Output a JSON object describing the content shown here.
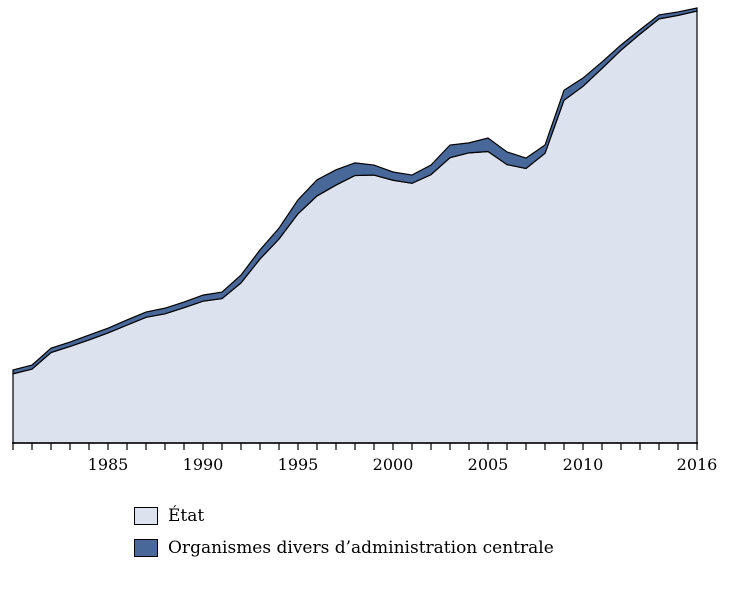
{
  "chart_data": {
    "type": "area",
    "stacked": true,
    "title": "",
    "xlabel": "",
    "ylabel": "",
    "grid": false,
    "legend_position": "bottom-left",
    "y_axis_tick_labels_visible": false,
    "ylim": [
      0,
      100
    ],
    "units": "normalized index (no y-axis scale shown; 2016 total = 100)",
    "x": [
      1980,
      1981,
      1982,
      1983,
      1984,
      1985,
      1986,
      1987,
      1988,
      1989,
      1990,
      1991,
      1992,
      1993,
      1994,
      1995,
      1996,
      1997,
      1998,
      1999,
      2000,
      2001,
      2002,
      2003,
      2004,
      2005,
      2006,
      2007,
      2008,
      2009,
      2010,
      2011,
      2012,
      2013,
      2014,
      2015,
      2016
    ],
    "x_tick_years": [
      1980,
      1981,
      1982,
      1983,
      1984,
      1985,
      1986,
      1987,
      1988,
      1989,
      1990,
      1991,
      1992,
      1993,
      1994,
      1995,
      1996,
      1997,
      1998,
      1999,
      2000,
      2001,
      2002,
      2003,
      2004,
      2005,
      2006,
      2007,
      2008,
      2009,
      2010,
      2011,
      2012,
      2013,
      2014,
      2015,
      2016
    ],
    "x_label_years": [
      1985,
      1990,
      1995,
      2000,
      2005,
      2010,
      2016
    ],
    "x_tick_labels": [
      "1985",
      "1990",
      "1995",
      "2000",
      "2005",
      "2010",
      "2016"
    ],
    "series": [
      {
        "name": "État",
        "color": "#dce3ef",
        "values": [
          15.9,
          17.0,
          20.8,
          22.2,
          23.7,
          25.3,
          27.1,
          28.9,
          29.7,
          31.1,
          32.6,
          33.2,
          36.8,
          42.3,
          46.9,
          52.7,
          56.8,
          59.3,
          61.5,
          61.6,
          60.4,
          59.7,
          61.7,
          65.6,
          66.7,
          67.0,
          64.0,
          63.1,
          66.6,
          78.8,
          82.0,
          86.1,
          90.3,
          94.0,
          97.5,
          98.3,
          99.3
        ]
      },
      {
        "name": "Organismes divers d’administration centrale",
        "color": "#48689a",
        "values": [
          0.9,
          0.9,
          1.0,
          1.0,
          1.1,
          1.1,
          1.2,
          1.2,
          1.3,
          1.3,
          1.4,
          1.5,
          1.8,
          2.1,
          2.5,
          3.2,
          3.7,
          3.5,
          2.9,
          2.3,
          1.9,
          1.9,
          2.2,
          2.9,
          2.3,
          3.1,
          2.9,
          2.4,
          1.9,
          2.3,
          1.9,
          1.5,
          1.2,
          1.0,
          0.9,
          0.8,
          0.7
        ]
      }
    ]
  },
  "legend": {
    "items": [
      {
        "label": "État",
        "color": "#dce3ef"
      },
      {
        "label": "Organismes divers d’administration centrale",
        "color": "#48689a"
      }
    ]
  }
}
